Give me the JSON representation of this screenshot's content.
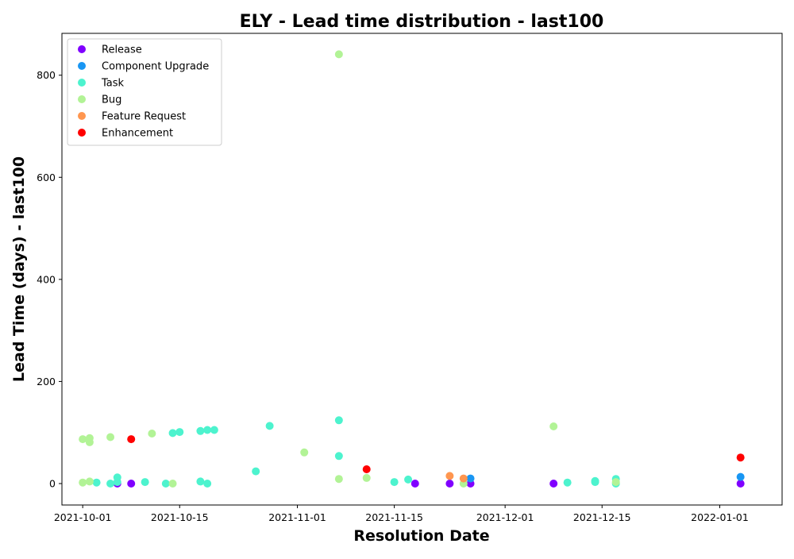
{
  "chart_data": {
    "type": "scatter",
    "title": "ELY - Lead time distribution - last100",
    "xlabel": "Resolution Date",
    "ylabel": "Lead Time (days) - last100",
    "x_type": "date",
    "xlim": [
      "2021-09-28",
      "2022-01-10"
    ],
    "ylim": [
      -42,
      882
    ],
    "xticks": [
      "2021-10-01",
      "2021-10-15",
      "2021-11-01",
      "2021-11-15",
      "2021-12-01",
      "2021-12-15",
      "2022-01-01"
    ],
    "yticks": [
      0,
      200,
      400,
      600,
      800
    ],
    "grid": false,
    "legend_position": "top-left",
    "series": [
      {
        "name": "Release",
        "color": "#8000ff",
        "points": [
          {
            "x": "2021-10-06",
            "y": 0
          },
          {
            "x": "2021-10-08",
            "y": 0
          },
          {
            "x": "2021-11-18",
            "y": 0
          },
          {
            "x": "2021-11-23",
            "y": 0
          },
          {
            "x": "2021-11-26",
            "y": 0
          },
          {
            "x": "2021-12-08",
            "y": 0
          },
          {
            "x": "2022-01-04",
            "y": 0
          }
        ]
      },
      {
        "name": "Component Upgrade",
        "color": "#1996f3",
        "points": [
          {
            "x": "2021-11-26",
            "y": 10
          },
          {
            "x": "2022-01-04",
            "y": 13
          }
        ]
      },
      {
        "name": "Task",
        "color": "#4df3ce",
        "points": [
          {
            "x": "2021-10-03",
            "y": 2
          },
          {
            "x": "2021-10-05",
            "y": 0
          },
          {
            "x": "2021-10-06",
            "y": 12
          },
          {
            "x": "2021-10-06",
            "y": 3
          },
          {
            "x": "2021-10-10",
            "y": 3
          },
          {
            "x": "2021-10-13",
            "y": 0
          },
          {
            "x": "2021-10-14",
            "y": 99
          },
          {
            "x": "2021-10-15",
            "y": 101
          },
          {
            "x": "2021-10-18",
            "y": 103
          },
          {
            "x": "2021-10-18",
            "y": 4
          },
          {
            "x": "2021-10-19",
            "y": 0
          },
          {
            "x": "2021-10-19",
            "y": 105
          },
          {
            "x": "2021-10-20",
            "y": 105
          },
          {
            "x": "2021-10-26",
            "y": 24
          },
          {
            "x": "2021-10-28",
            "y": 113
          },
          {
            "x": "2021-11-07",
            "y": 124
          },
          {
            "x": "2021-11-07",
            "y": 54
          },
          {
            "x": "2021-11-15",
            "y": 3
          },
          {
            "x": "2021-11-17",
            "y": 8
          },
          {
            "x": "2021-12-10",
            "y": 2
          },
          {
            "x": "2021-12-14",
            "y": 3
          },
          {
            "x": "2021-12-14",
            "y": 5
          },
          {
            "x": "2021-12-17",
            "y": 0
          },
          {
            "x": "2021-12-17",
            "y": 9
          }
        ]
      },
      {
        "name": "Bug",
        "color": "#b2f396",
        "points": [
          {
            "x": "2021-10-01",
            "y": 87
          },
          {
            "x": "2021-10-01",
            "y": 2
          },
          {
            "x": "2021-10-02",
            "y": 89
          },
          {
            "x": "2021-10-02",
            "y": 81
          },
          {
            "x": "2021-10-02",
            "y": 4
          },
          {
            "x": "2021-10-05",
            "y": 91
          },
          {
            "x": "2021-10-11",
            "y": 98
          },
          {
            "x": "2021-10-14",
            "y": 0
          },
          {
            "x": "2021-11-02",
            "y": 61
          },
          {
            "x": "2021-11-07",
            "y": 841
          },
          {
            "x": "2021-11-07",
            "y": 9
          },
          {
            "x": "2021-11-11",
            "y": 11
          },
          {
            "x": "2021-11-25",
            "y": 0
          },
          {
            "x": "2021-12-08",
            "y": 112
          },
          {
            "x": "2021-12-17",
            "y": 3
          }
        ]
      },
      {
        "name": "Feature Request",
        "color": "#ff964f",
        "points": [
          {
            "x": "2021-11-23",
            "y": 15
          },
          {
            "x": "2021-11-25",
            "y": 10
          }
        ]
      },
      {
        "name": "Enhancement",
        "color": "#ff0000",
        "points": [
          {
            "x": "2021-10-08",
            "y": 87
          },
          {
            "x": "2021-11-11",
            "y": 28
          },
          {
            "x": "2022-01-04",
            "y": 51
          }
        ]
      }
    ]
  }
}
